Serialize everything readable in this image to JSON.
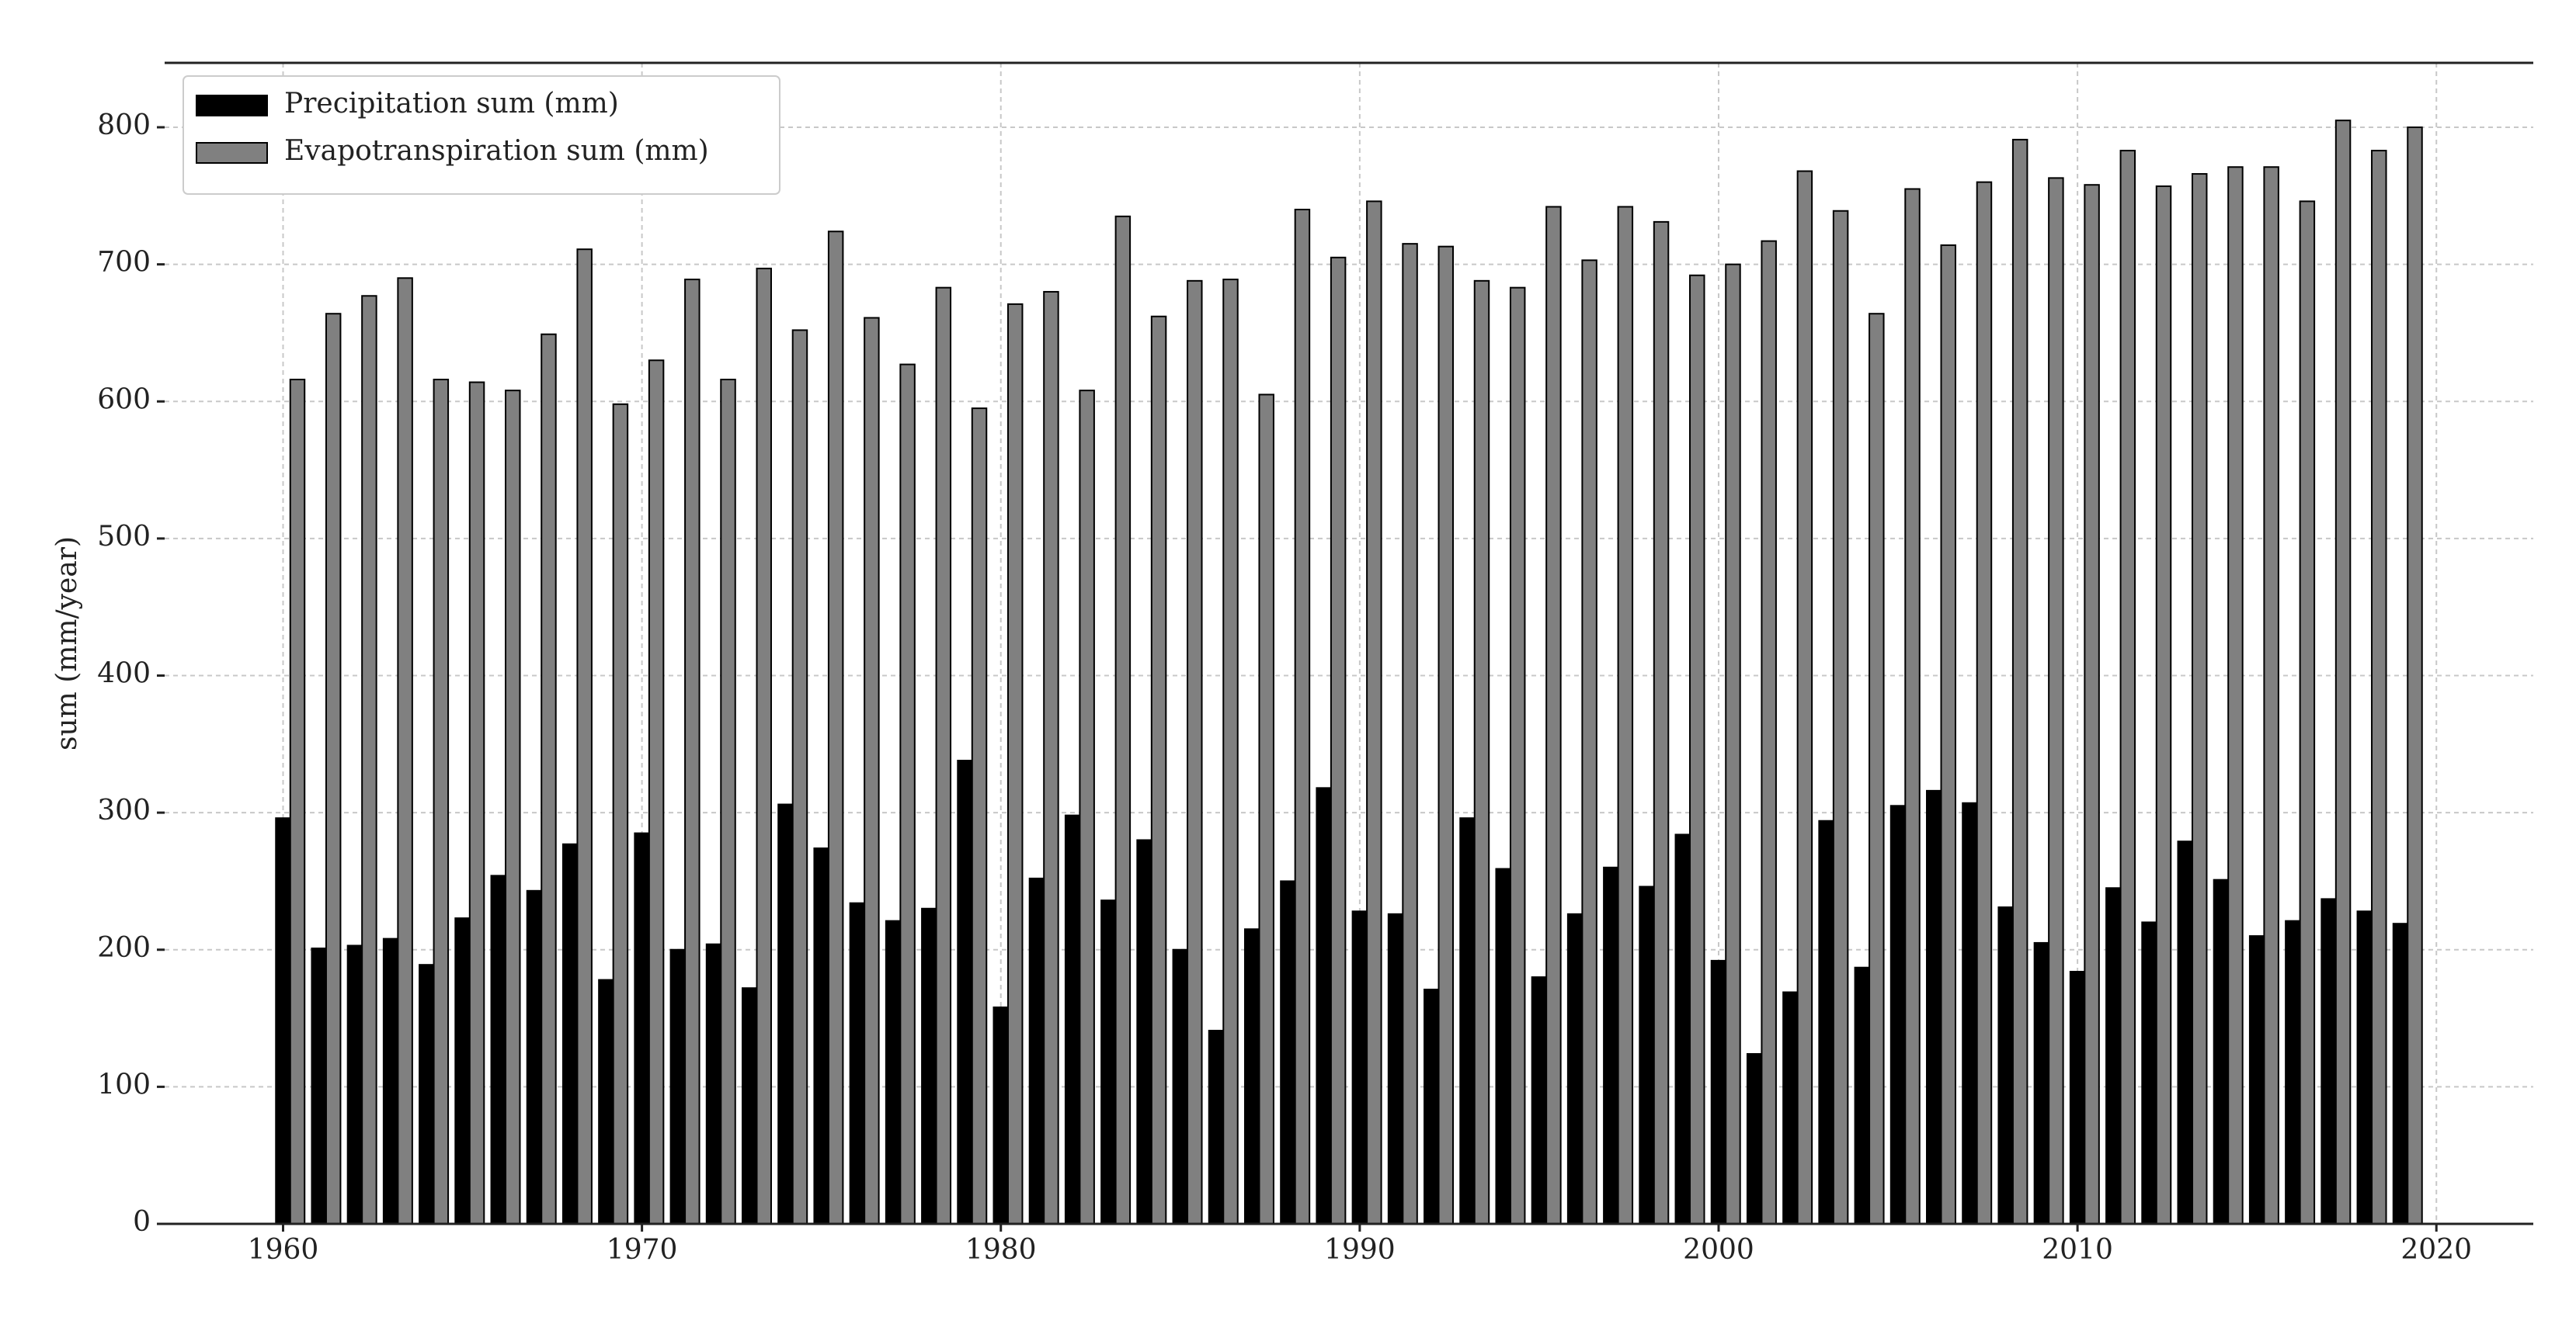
{
  "chart_data": {
    "type": "bar",
    "y_label": "sum (mm/year)",
    "x": [
      1960,
      1961,
      1962,
      1963,
      1964,
      1965,
      1966,
      1967,
      1968,
      1969,
      1970,
      1971,
      1972,
      1973,
      1974,
      1975,
      1976,
      1977,
      1978,
      1979,
      1980,
      1981,
      1982,
      1983,
      1984,
      1985,
      1986,
      1987,
      1988,
      1989,
      1990,
      1991,
      1992,
      1993,
      1994,
      1995,
      1996,
      1997,
      1998,
      1999,
      2000,
      2001,
      2002,
      2003,
      2004,
      2005,
      2006,
      2007,
      2008,
      2009,
      2010,
      2011,
      2012,
      2013,
      2014,
      2015,
      2016,
      2017,
      2018,
      2019
    ],
    "series": [
      {
        "name": "Precipitation sum (mm)",
        "color": "#000000",
        "values": [
          296,
          201,
          203,
          208,
          189,
          223,
          254,
          243,
          277,
          178,
          285,
          200,
          204,
          172,
          306,
          274,
          234,
          221,
          230,
          338,
          158,
          252,
          298,
          236,
          280,
          200,
          141,
          215,
          250,
          318,
          228,
          226,
          171,
          296,
          259,
          180,
          226,
          260,
          246,
          284,
          192,
          124,
          169,
          294,
          187,
          305,
          316,
          307,
          231,
          205,
          184,
          245,
          220,
          279,
          251,
          210,
          221,
          237,
          228,
          219
        ]
      },
      {
        "name": "Evapotranspiration sum (mm)",
        "color": "#808080",
        "values": [
          616,
          664,
          677,
          690,
          616,
          614,
          608,
          649,
          711,
          598,
          630,
          689,
          616,
          697,
          652,
          724,
          661,
          627,
          683,
          595,
          671,
          680,
          608,
          735,
          662,
          688,
          689,
          605,
          740,
          705,
          746,
          715,
          713,
          688,
          683,
          742,
          703,
          742,
          731,
          692,
          700,
          717,
          768,
          739,
          664,
          755,
          714,
          760,
          791,
          763,
          758,
          783,
          757,
          766,
          771,
          771,
          746,
          805,
          783,
          800
        ]
      }
    ],
    "xlim": [
      1956.7,
      2022.7
    ],
    "xticks": [
      1960,
      1970,
      1980,
      1990,
      2000,
      2010,
      2020
    ],
    "ylim": [
      0,
      847
    ],
    "yticks": [
      0,
      100,
      200,
      300,
      400,
      500,
      600,
      700,
      800
    ],
    "grid": true,
    "legend": "upper left"
  }
}
